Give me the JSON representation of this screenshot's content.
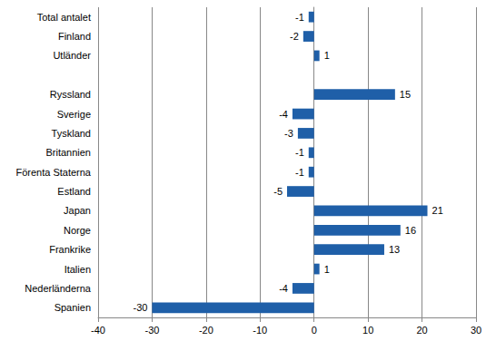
{
  "chart_data": {
    "type": "bar",
    "orientation": "horizontal",
    "categories": [
      "Total antalet",
      "Finland",
      "Utländer",
      null,
      "Ryssland",
      "Sverige",
      "Tyskland",
      "Britannien",
      "Förenta Staterna",
      "Estland",
      "Japan",
      "Norge",
      "Frankrike",
      "Italien",
      "Nederländerna",
      "Spanien"
    ],
    "values": [
      -1,
      -2,
      1,
      null,
      15,
      -4,
      -3,
      -1,
      -1,
      -5,
      21,
      16,
      13,
      1,
      -4,
      -30
    ],
    "color": "#1f5fa8",
    "xlim": [
      -40,
      30
    ],
    "xticks": [
      -40,
      -30,
      -20,
      -10,
      0,
      10,
      20,
      30
    ],
    "grid": true,
    "data_labels": true
  }
}
